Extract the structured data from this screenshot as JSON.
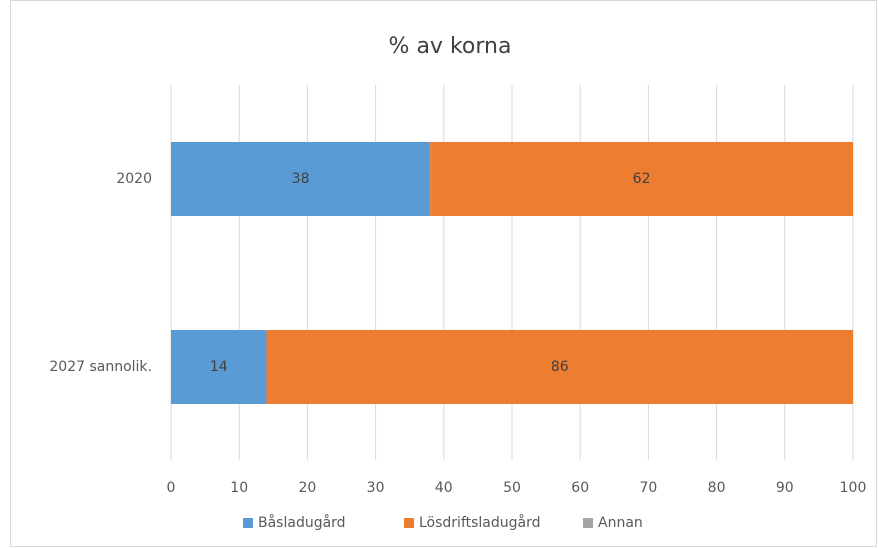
{
  "chart_data": {
    "type": "stacked-bar",
    "orientation": "horizontal",
    "title": "% av korna",
    "categories": [
      "2020",
      "2027 sannolik."
    ],
    "series": [
      {
        "name": "Båsladugård",
        "color": "#5b9bd5",
        "values": [
          38,
          14
        ]
      },
      {
        "name": "Lösdriftsladugård",
        "color": "#ed7d31",
        "values": [
          62,
          86
        ]
      },
      {
        "name": "Annan",
        "color": "#a5a5a5",
        "values": [
          0,
          0
        ]
      }
    ],
    "xlim": [
      0,
      100
    ],
    "xticks": [
      0,
      10,
      20,
      30,
      40,
      50,
      60,
      70,
      80,
      90,
      100
    ],
    "grid": true,
    "legend": "bottom"
  }
}
